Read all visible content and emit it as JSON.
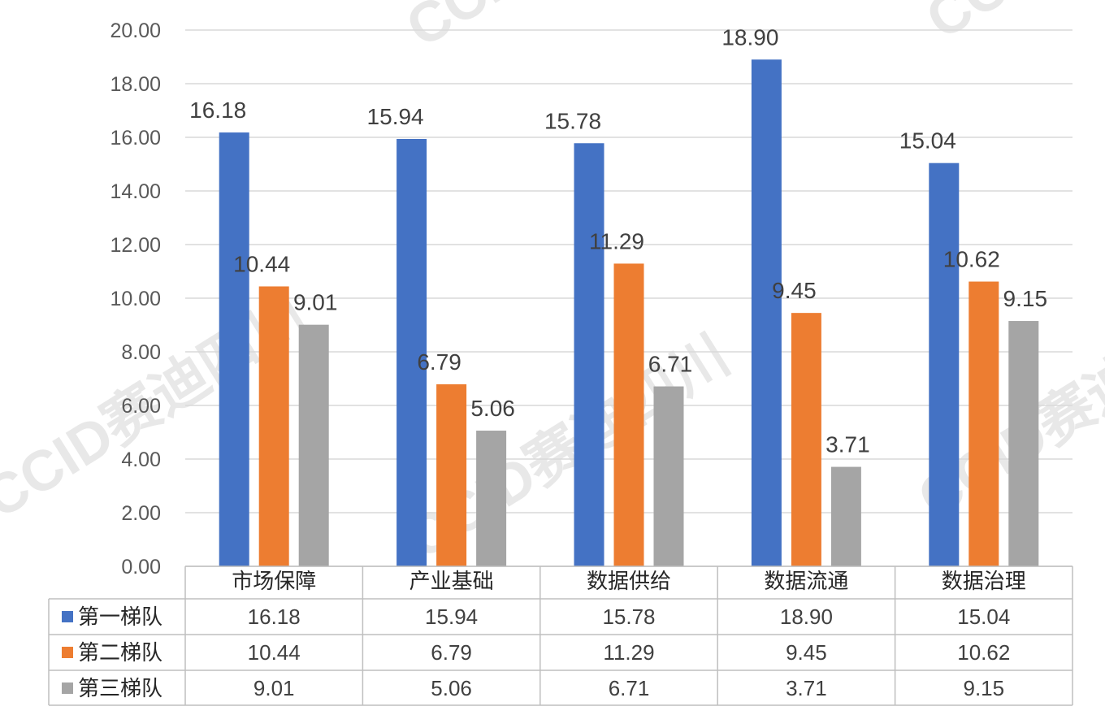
{
  "chart_data": {
    "type": "bar",
    "categories": [
      "市场保障",
      "产业基础",
      "数据供给",
      "数据流通",
      "数据治理"
    ],
    "series": [
      {
        "name": "第一梯队",
        "color": "#4472c4",
        "values": [
          16.18,
          15.94,
          15.78,
          18.9,
          15.04
        ]
      },
      {
        "name": "第二梯队",
        "color": "#ed7d31",
        "values": [
          10.44,
          6.79,
          11.29,
          9.45,
          10.62
        ]
      },
      {
        "name": "第三梯队",
        "color": "#a5a5a5",
        "values": [
          9.01,
          5.06,
          6.71,
          3.71,
          9.15
        ]
      }
    ],
    "ylim": [
      0,
      20
    ],
    "yticks": [
      "0.00",
      "2.00",
      "4.00",
      "6.00",
      "8.00",
      "10.00",
      "12.00",
      "14.00",
      "16.00",
      "18.00",
      "20.00"
    ],
    "data_labels": [
      [
        "16.18",
        "15.94",
        "15.78",
        "18.90",
        "15.04"
      ],
      [
        "10.44",
        "6.79",
        "11.29",
        "9.45",
        "10.62"
      ],
      [
        "9.01",
        "5.06",
        "6.71",
        "3.71",
        "9.15"
      ]
    ],
    "grid": true,
    "data_table": true,
    "title": "",
    "xlabel": "",
    "ylabel": ""
  },
  "watermark": {
    "text_cn": "赛迪四川",
    "text_en": "CCID"
  }
}
